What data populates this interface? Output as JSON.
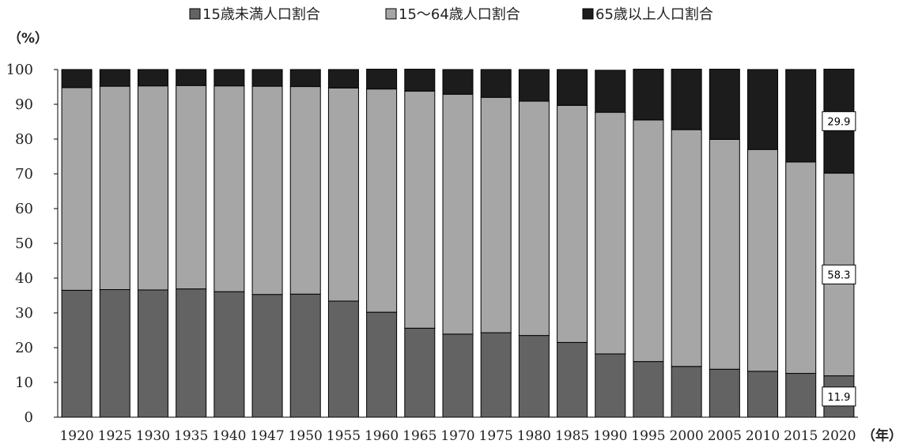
{
  "chart_data": {
    "type": "bar",
    "stacked": true,
    "categories": [
      "1920",
      "1925",
      "1930",
      "1935",
      "1940",
      "1947",
      "1950",
      "1955",
      "1960",
      "1965",
      "1970",
      "1975",
      "1980",
      "1985",
      "1990",
      "1995",
      "2000",
      "2005",
      "2010",
      "2015",
      "2020"
    ],
    "series": [
      {
        "name": "15歳未満人口割合",
        "color": "#636363",
        "values": [
          36.5,
          36.7,
          36.6,
          36.9,
          36.1,
          35.3,
          35.4,
          33.4,
          30.2,
          25.6,
          23.9,
          24.3,
          23.5,
          21.5,
          18.2,
          16.0,
          14.6,
          13.8,
          13.2,
          12.6,
          11.9
        ]
      },
      {
        "name": "15〜64歳人口割合",
        "color": "#a6a6a6",
        "values": [
          58.3,
          58.5,
          58.7,
          58.5,
          59.2,
          59.9,
          59.7,
          61.3,
          64.2,
          68.2,
          69.0,
          67.7,
          67.4,
          68.2,
          69.5,
          69.5,
          68.1,
          66.1,
          63.8,
          60.8,
          58.3
        ]
      },
      {
        "name": "65歳以上人口割合",
        "color": "#1c1c1c",
        "values": [
          5.2,
          4.8,
          4.7,
          4.6,
          4.7,
          4.8,
          4.9,
          5.3,
          5.7,
          6.3,
          7.1,
          8.0,
          9.1,
          10.3,
          12.1,
          14.6,
          17.4,
          20.2,
          23.0,
          26.6,
          29.9
        ]
      }
    ],
    "ylim": [
      0,
      100
    ],
    "yticks": [
      0,
      10,
      20,
      30,
      40,
      50,
      60,
      70,
      80,
      90,
      100
    ],
    "ylabel": "（%）",
    "xlabel": "（年）",
    "legend_position": "top",
    "grid": false,
    "data_labels": [
      {
        "category": "2020",
        "series": "65歳以上人口割合",
        "text": "29.9"
      },
      {
        "category": "2020",
        "series": "15〜64歳人口割合",
        "text": "58.3"
      },
      {
        "category": "2020",
        "series": "15歳未満人口割合",
        "text": "11.9"
      }
    ]
  }
}
